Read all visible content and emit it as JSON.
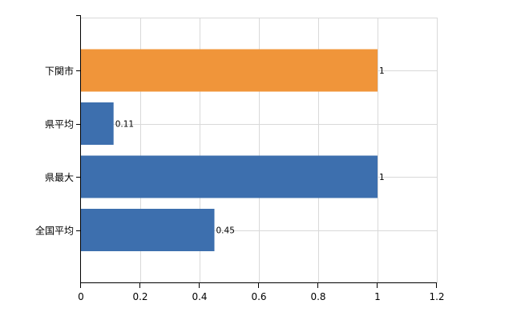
{
  "chart_data": {
    "type": "bar",
    "orientation": "horizontal",
    "categories": [
      "下関市",
      "県平均",
      "県最大",
      "全国平均"
    ],
    "values": [
      1,
      0.11,
      1,
      0.45
    ],
    "value_labels": [
      "1",
      "0.11",
      "1",
      "0.45"
    ],
    "bar_colors": [
      "#f0953a",
      "#3d6fae",
      "#3d6fae",
      "#3d6fae"
    ],
    "title": "",
    "xlabel": "",
    "ylabel": "",
    "xlim": [
      0,
      1.2
    ],
    "x_ticks": [
      0,
      0.2,
      0.4,
      0.6,
      0.8,
      1,
      1.2
    ],
    "x_tick_labels": [
      "0",
      "0.2",
      "0.4",
      "0.6",
      "0.8",
      "1",
      "1.2"
    ],
    "grid": true,
    "legend": "none"
  }
}
